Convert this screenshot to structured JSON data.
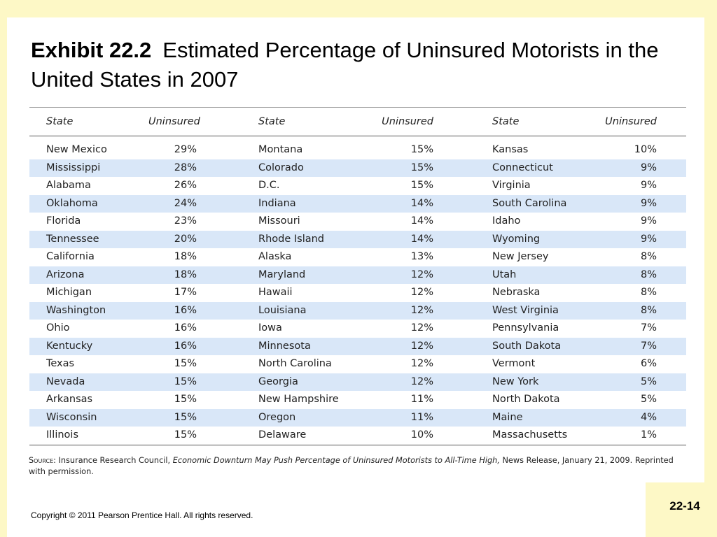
{
  "title": {
    "exhibit": "Exhibit 22.2",
    "text": "Estimated Percentage of Uninsured Motorists in the United States in 2007"
  },
  "table": {
    "headers": [
      "State",
      "Uninsured",
      "State",
      "Uninsured",
      "State",
      "Uninsured"
    ],
    "rows": [
      [
        "New Mexico",
        "29%",
        "Montana",
        "15%",
        "Kansas",
        "10%"
      ],
      [
        "Mississippi",
        "28%",
        "Colorado",
        "15%",
        "Connecticut",
        "9%"
      ],
      [
        "Alabama",
        "26%",
        "D.C.",
        "15%",
        "Virginia",
        "9%"
      ],
      [
        "Oklahoma",
        "24%",
        "Indiana",
        "14%",
        "South Carolina",
        "9%"
      ],
      [
        "Florida",
        "23%",
        "Missouri",
        "14%",
        "Idaho",
        "9%"
      ],
      [
        "Tennessee",
        "20%",
        "Rhode Island",
        "14%",
        "Wyoming",
        "9%"
      ],
      [
        "California",
        "18%",
        "Alaska",
        "13%",
        "New Jersey",
        "8%"
      ],
      [
        "Arizona",
        "18%",
        "Maryland",
        "12%",
        "Utah",
        "8%"
      ],
      [
        "Michigan",
        "17%",
        "Hawaii",
        "12%",
        "Nebraska",
        "8%"
      ],
      [
        "Washington",
        "16%",
        "Louisiana",
        "12%",
        "West Virginia",
        "8%"
      ],
      [
        "Ohio",
        "16%",
        "Iowa",
        "12%",
        "Pennsylvania",
        "7%"
      ],
      [
        "Kentucky",
        "16%",
        "Minnesota",
        "12%",
        "South Dakota",
        "7%"
      ],
      [
        "Texas",
        "15%",
        "North Carolina",
        "12%",
        "Vermont",
        "6%"
      ],
      [
        "Nevada",
        "15%",
        "Georgia",
        "12%",
        "New York",
        "5%"
      ],
      [
        "Arkansas",
        "15%",
        "New Hampshire",
        "11%",
        "North Dakota",
        "5%"
      ],
      [
        "Wisconsin",
        "15%",
        "Oregon",
        "11%",
        "Maine",
        "4%"
      ],
      [
        "Illinois",
        "15%",
        "Delaware",
        "10%",
        "Massachusetts",
        "1%"
      ]
    ]
  },
  "source": {
    "label": "Source:",
    "prefix": " Insurance Research Council, ",
    "title": "Economic Downturn May Push Percentage of Uninsured Motorists to All-Time High,",
    "suffix": " News Release, January 21, 2009. Reprinted with permission."
  },
  "footer": {
    "copyright": "Copyright © 2011 Pearson Prentice Hall. All rights reserved.",
    "page": "22-14"
  },
  "colors": {
    "background": "#fdf8c6",
    "row_stripe": "#d9e7f8"
  }
}
